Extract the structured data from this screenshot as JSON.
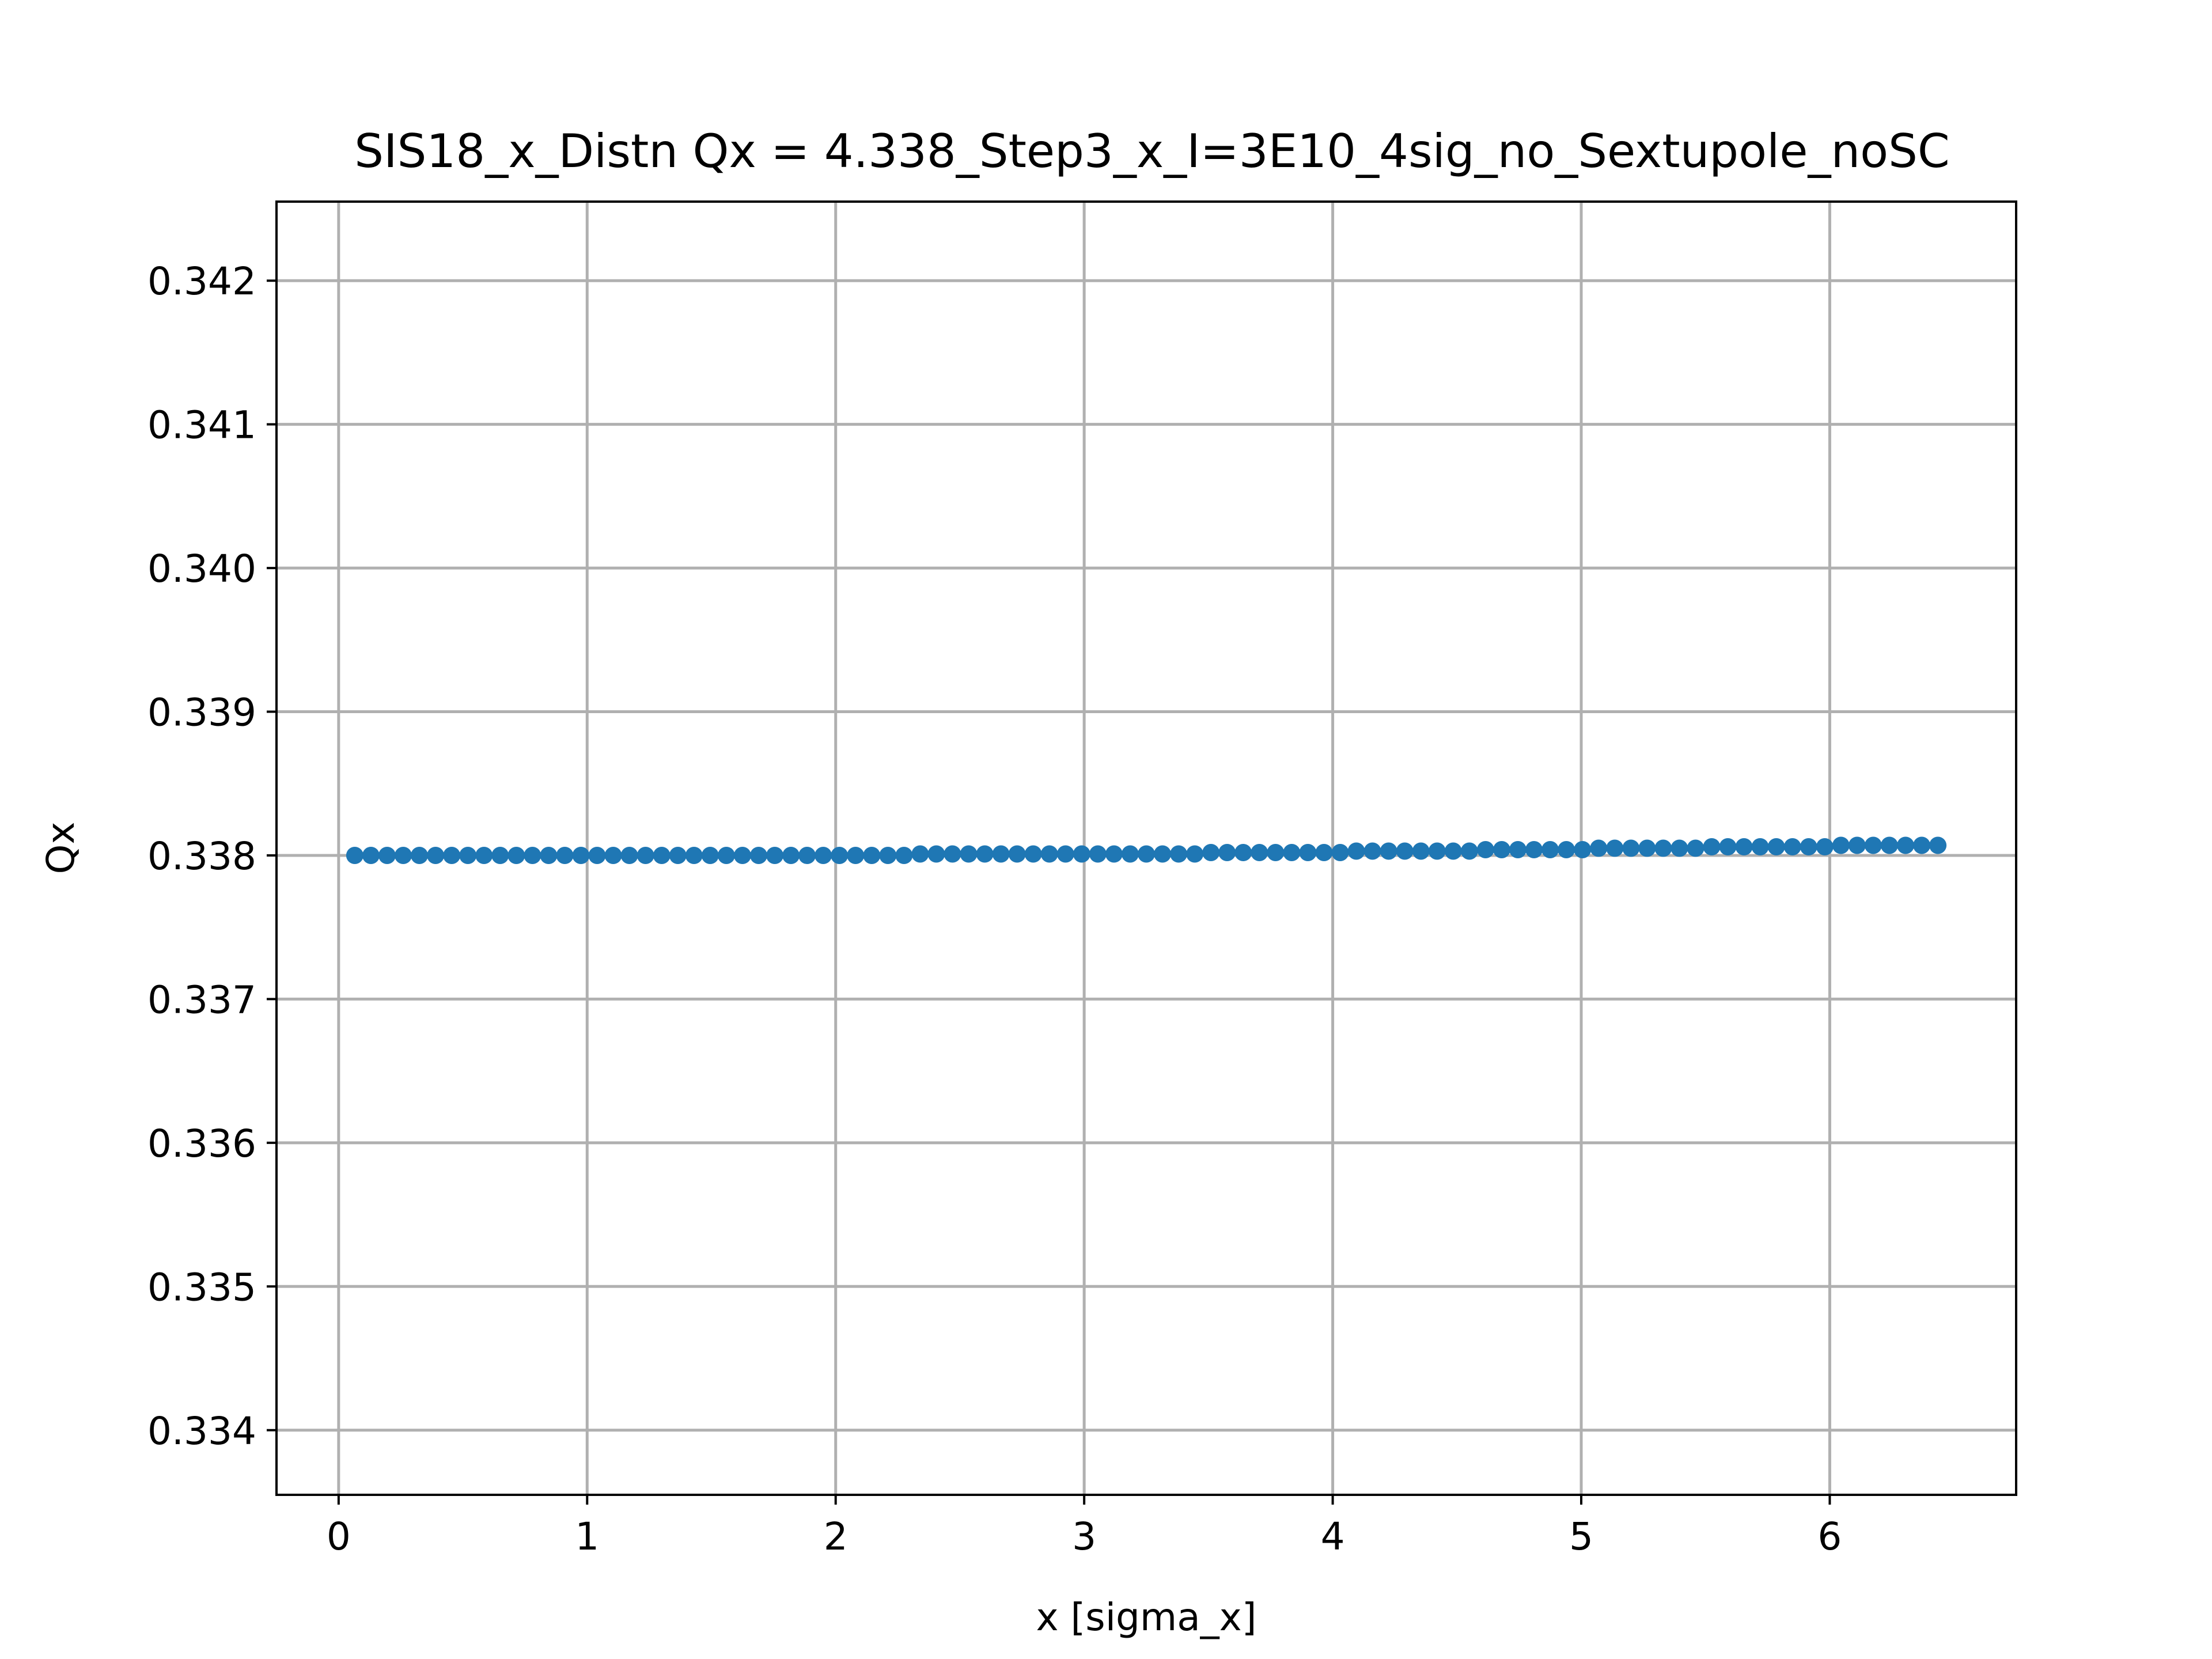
{
  "chart_data": {
    "type": "scatter",
    "title": "SIS18_x_Distn Qx = 4.338_Step3_x_I=3E10_4sig_no_Sextupole_noSC",
    "xlabel": "x [sigma_x]",
    "ylabel": "Qx",
    "xlim": [
      -0.25,
      6.75
    ],
    "ylim": [
      0.33355,
      0.34255
    ],
    "xticks": [
      0,
      1,
      2,
      3,
      4,
      5,
      6
    ],
    "xtick_labels": [
      "0",
      "1",
      "2",
      "3",
      "4",
      "5",
      "6"
    ],
    "yticks": [
      0.334,
      0.335,
      0.336,
      0.337,
      0.338,
      0.339,
      0.34,
      0.341,
      0.342
    ],
    "ytick_labels": [
      "0.334",
      "0.335",
      "0.336",
      "0.337",
      "0.338",
      "0.339",
      "0.340",
      "0.341",
      "0.342"
    ],
    "grid": true,
    "marker_color": "#1f77b4",
    "series": [
      {
        "x": [
          0.065,
          0.13,
          0.195,
          0.26,
          0.325,
          0.39,
          0.455,
          0.52,
          0.585,
          0.65,
          0.715,
          0.78,
          0.845,
          0.91,
          0.975,
          1.04,
          1.105,
          1.17,
          1.235,
          1.3,
          1.365,
          1.43,
          1.495,
          1.56,
          1.625,
          1.69,
          1.755,
          1.82,
          1.885,
          1.95,
          2.015,
          2.08,
          2.145,
          2.21,
          2.275,
          2.34,
          2.405,
          2.47,
          2.535,
          2.6,
          2.665,
          2.73,
          2.795,
          2.86,
          2.925,
          2.99,
          3.055,
          3.12,
          3.185,
          3.25,
          3.315,
          3.38,
          3.445,
          3.51,
          3.575,
          3.64,
          3.705,
          3.77,
          3.835,
          3.9,
          3.965,
          4.03,
          4.095,
          4.16,
          4.225,
          4.29,
          4.355,
          4.42,
          4.485,
          4.55,
          4.615,
          4.68,
          4.745,
          4.81,
          4.875,
          4.94,
          5.005,
          5.07,
          5.135,
          5.2,
          5.265,
          5.33,
          5.395,
          5.46,
          5.525,
          5.59,
          5.655,
          5.72,
          5.785,
          5.85,
          5.915,
          5.98,
          6.045,
          6.11,
          6.175,
          6.24,
          6.305,
          6.37,
          6.435
        ],
        "y": [
          0.338,
          0.338,
          0.338,
          0.338,
          0.338,
          0.338,
          0.338,
          0.338,
          0.338,
          0.338,
          0.338,
          0.338,
          0.338,
          0.338,
          0.338,
          0.338,
          0.338,
          0.338,
          0.338,
          0.338,
          0.338,
          0.338,
          0.338,
          0.338,
          0.338,
          0.338,
          0.338,
          0.338,
          0.338,
          0.338,
          0.338,
          0.338,
          0.338,
          0.338,
          0.338,
          0.33801,
          0.33801,
          0.33801,
          0.33801,
          0.33801,
          0.33801,
          0.33801,
          0.33801,
          0.33801,
          0.33801,
          0.33801,
          0.33801,
          0.33801,
          0.33801,
          0.33801,
          0.33801,
          0.33801,
          0.33801,
          0.33802,
          0.33802,
          0.33802,
          0.33802,
          0.33802,
          0.33802,
          0.33802,
          0.33802,
          0.33802,
          0.33803,
          0.33803,
          0.33803,
          0.33803,
          0.33803,
          0.33803,
          0.33803,
          0.33803,
          0.33804,
          0.33804,
          0.33804,
          0.33804,
          0.33804,
          0.33804,
          0.33804,
          0.33805,
          0.33805,
          0.33805,
          0.33805,
          0.33805,
          0.33805,
          0.33805,
          0.33806,
          0.33806,
          0.33806,
          0.33806,
          0.33806,
          0.33806,
          0.33806,
          0.33806,
          0.33807,
          0.33807,
          0.33807,
          0.33807,
          0.33807,
          0.33807,
          0.33807
        ]
      }
    ]
  }
}
